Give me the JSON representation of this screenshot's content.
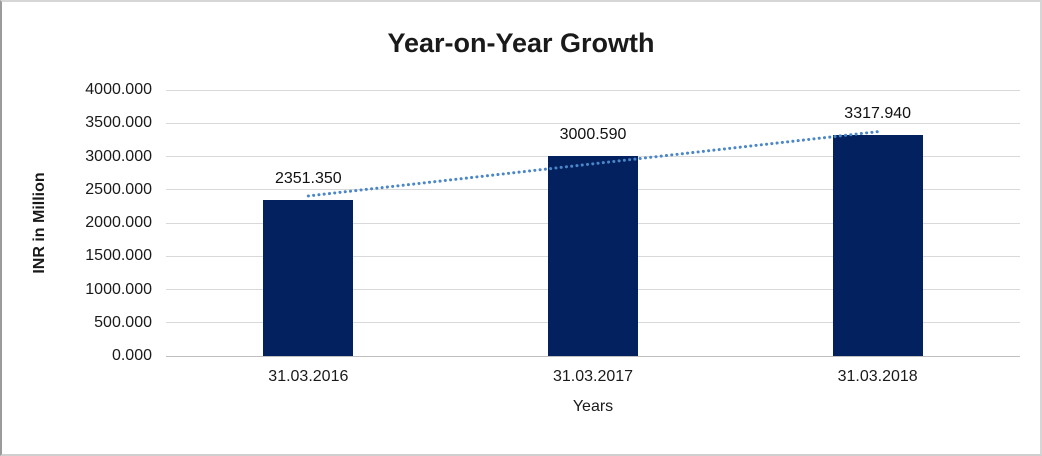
{
  "chart": {
    "title": "Year-on-Year Growth",
    "y_axis_title": "INR in Million",
    "x_axis_title": "Years"
  },
  "chart_data": {
    "type": "bar",
    "title": "Year-on-Year Growth",
    "xlabel": "Years",
    "ylabel": "INR in Million",
    "categories": [
      "31.03.2016",
      "31.03.2017",
      "31.03.2018"
    ],
    "values": [
      2351.35,
      3000.59,
      3317.94
    ],
    "data_labels": [
      "2351.350",
      "3000.590",
      "3317.940"
    ],
    "ylim": [
      0,
      4000
    ],
    "ytick_interval": 500,
    "ytick_labels": [
      "0.000",
      "500.000",
      "1000.000",
      "1500.000",
      "2000.000",
      "2500.000",
      "3000.000",
      "3500.000",
      "4000.000"
    ],
    "grid": "horizontal-on",
    "legend": "none",
    "trendline": {
      "type": "linear",
      "style": "dotted"
    },
    "colors": {
      "bar": "#02215e",
      "trendline": "#4a86c8",
      "gridline": "#d9d9d9",
      "text": "#1a1a1a",
      "background": "#ffffff"
    }
  }
}
